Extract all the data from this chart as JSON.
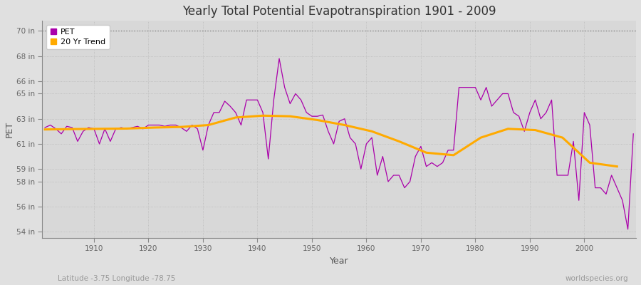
{
  "title": "Yearly Total Potential Evapotranspiration 1901 - 2009",
  "xlabel": "Year",
  "ylabel": "PET",
  "subtitle_left": "Latitude -3.75 Longitude -78.75",
  "subtitle_right": "worldspecies.org",
  "bg_color": "#e0e0e0",
  "plot_bg_color": "#d8d8d8",
  "line_color_pet": "#aa00aa",
  "line_color_trend": "#ffaa00",
  "yticks": [
    54,
    56,
    58,
    59,
    61,
    63,
    65,
    66,
    68,
    70
  ],
  "ytick_labels": [
    "54 in",
    "56 in",
    "58 in",
    "59 in",
    "61 in",
    "63 in",
    "65 in",
    "66 in",
    "68 in",
    "70 in"
  ],
  "ylim": [
    53.5,
    70.8
  ],
  "xlim": [
    1900.5,
    2009.5
  ],
  "years": [
    1901,
    1902,
    1903,
    1904,
    1905,
    1906,
    1907,
    1908,
    1909,
    1910,
    1911,
    1912,
    1913,
    1914,
    1915,
    1916,
    1917,
    1918,
    1919,
    1920,
    1921,
    1922,
    1923,
    1924,
    1925,
    1926,
    1927,
    1928,
    1929,
    1930,
    1931,
    1932,
    1933,
    1934,
    1935,
    1936,
    1937,
    1938,
    1939,
    1940,
    1941,
    1942,
    1943,
    1944,
    1945,
    1946,
    1947,
    1948,
    1949,
    1950,
    1951,
    1952,
    1953,
    1954,
    1955,
    1956,
    1957,
    1958,
    1959,
    1960,
    1961,
    1962,
    1963,
    1964,
    1965,
    1966,
    1967,
    1968,
    1969,
    1970,
    1971,
    1972,
    1973,
    1974,
    1975,
    1976,
    1977,
    1978,
    1979,
    1980,
    1981,
    1982,
    1983,
    1984,
    1985,
    1986,
    1987,
    1988,
    1989,
    1990,
    1991,
    1992,
    1993,
    1994,
    1995,
    1996,
    1997,
    1998,
    1999,
    2000,
    2001,
    2002,
    2003,
    2004,
    2005,
    2006,
    2007,
    2008,
    2009
  ],
  "pet_values": [
    62.3,
    62.5,
    62.2,
    61.8,
    62.4,
    62.3,
    61.2,
    62.0,
    62.3,
    62.2,
    61.0,
    62.2,
    61.2,
    62.2,
    62.3,
    62.2,
    62.3,
    62.4,
    62.2,
    62.5,
    62.5,
    62.5,
    62.4,
    62.5,
    62.5,
    62.3,
    62.0,
    62.5,
    62.2,
    60.5,
    62.5,
    63.5,
    63.5,
    64.4,
    64.0,
    63.5,
    62.5,
    64.5,
    64.5,
    64.5,
    63.5,
    59.8,
    64.5,
    67.8,
    65.5,
    64.2,
    65.0,
    64.5,
    63.5,
    63.2,
    63.2,
    63.3,
    62.0,
    61.0,
    62.8,
    63.0,
    61.5,
    61.0,
    59.0,
    61.0,
    61.5,
    58.5,
    60.0,
    58.0,
    58.5,
    58.5,
    57.5,
    58.0,
    60.0,
    60.8,
    59.2,
    59.5,
    59.2,
    59.5,
    60.5,
    60.5,
    65.5,
    65.5,
    65.5,
    65.5,
    64.5,
    65.5,
    64.0,
    64.5,
    65.0,
    65.0,
    63.5,
    63.2,
    62.0,
    63.5,
    64.5,
    63.0,
    63.5,
    64.5,
    58.5,
    58.5,
    58.5,
    61.2,
    56.5,
    63.5,
    62.5,
    57.5,
    57.5,
    57.0,
    58.5,
    57.5,
    56.5,
    54.2,
    61.8
  ],
  "trend_years": [
    1901,
    1906,
    1911,
    1916,
    1921,
    1926,
    1931,
    1936,
    1941,
    1946,
    1951,
    1956,
    1961,
    1966,
    1971,
    1976,
    1981,
    1986,
    1991,
    1996,
    2001,
    2006
  ],
  "trend_values": [
    62.15,
    62.18,
    62.2,
    62.22,
    62.3,
    62.35,
    62.5,
    63.1,
    63.25,
    63.2,
    62.9,
    62.5,
    62.0,
    61.2,
    60.3,
    60.1,
    61.5,
    62.2,
    62.1,
    61.5,
    59.5,
    59.2
  ]
}
